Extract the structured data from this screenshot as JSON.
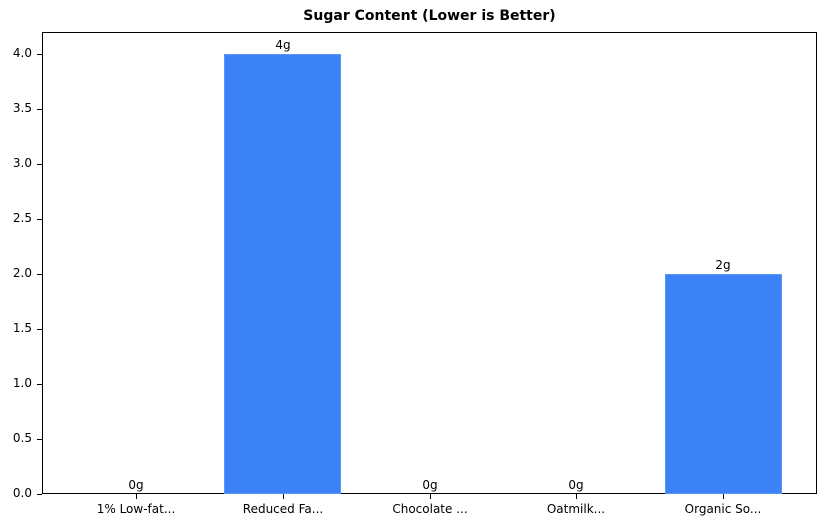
{
  "chart_data": {
    "type": "bar",
    "title": "Sugar Content (Lower is Better)",
    "xlabel": "",
    "ylabel": "",
    "categories": [
      "1% Low-fat...",
      "Reduced Fa...",
      "Chocolate ...",
      "Oatmilk...",
      "Organic So..."
    ],
    "values": [
      0,
      4,
      0,
      0,
      2
    ],
    "value_labels": [
      "0g",
      "4g",
      "0g",
      "0g",
      "2g"
    ],
    "ylim": [
      0,
      4.2
    ],
    "yticks": [
      "0.0",
      "0.5",
      "1.0",
      "1.5",
      "2.0",
      "2.5",
      "3.0",
      "3.5",
      "4.0"
    ],
    "grid": false,
    "legend": null,
    "bar_color": "#3b82f6"
  }
}
